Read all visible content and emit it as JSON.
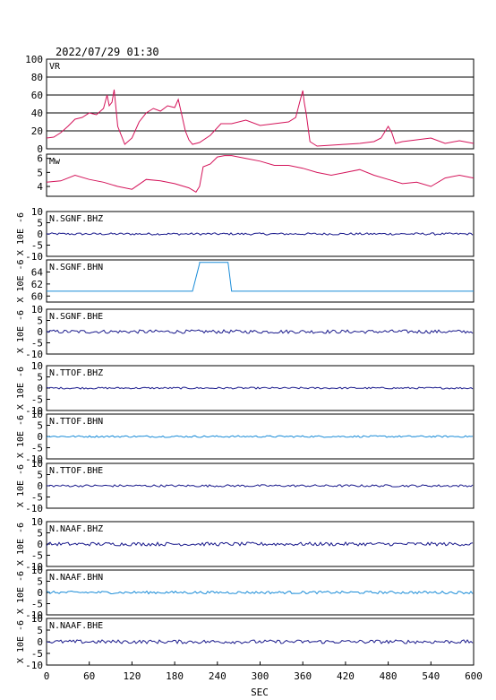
{
  "header": {
    "timestamp": "2022/07/29  01:30"
  },
  "xaxis": {
    "label": "SEC",
    "ticks": [
      "0",
      "60",
      "120",
      "180",
      "240",
      "300",
      "360",
      "420",
      "480",
      "540",
      "600"
    ],
    "range": [
      0,
      600
    ]
  },
  "colors": {
    "vr": "#d4145a",
    "mw": "#d4145a",
    "dark_blue": "#1a1a8c",
    "light_blue": "#1a8cd8",
    "grid": "#000000"
  },
  "chart_data": [
    {
      "type": "line",
      "label": "VR",
      "ylim": [
        0,
        100
      ],
      "yticks": [
        "100",
        "80",
        "60",
        "40",
        "20",
        "0"
      ],
      "grid": true,
      "x": [
        0,
        10,
        20,
        30,
        40,
        50,
        60,
        70,
        80,
        85,
        88,
        92,
        95,
        100,
        110,
        120,
        130,
        140,
        150,
        160,
        170,
        180,
        185,
        190,
        195,
        200,
        205,
        215,
        230,
        245,
        260,
        280,
        300,
        320,
        340,
        350,
        355,
        360,
        362,
        365,
        370,
        380,
        400,
        420,
        440,
        460,
        470,
        480,
        485,
        490,
        500,
        520,
        540,
        560,
        580,
        600
      ],
      "values": [
        12,
        13,
        18,
        25,
        33,
        35,
        40,
        38,
        45,
        60,
        48,
        52,
        66,
        25,
        5,
        12,
        30,
        40,
        45,
        42,
        48,
        46,
        55,
        38,
        20,
        10,
        5,
        7,
        15,
        28,
        28,
        32,
        26,
        28,
        30,
        35,
        50,
        65,
        52,
        38,
        8,
        3,
        4,
        5,
        6,
        8,
        12,
        25,
        18,
        6,
        8,
        10,
        12,
        6,
        9,
        6
      ]
    },
    {
      "type": "line",
      "label": "Mw",
      "ylim": [
        3.3,
        6.3
      ],
      "yticks": [
        "6",
        "5",
        "4"
      ],
      "x": [
        0,
        20,
        40,
        60,
        80,
        100,
        120,
        140,
        160,
        180,
        200,
        210,
        215,
        220,
        230,
        240,
        250,
        260,
        280,
        300,
        320,
        340,
        360,
        380,
        400,
        420,
        440,
        460,
        480,
        500,
        520,
        540,
        560,
        580,
        600
      ],
      "values": [
        4.3,
        4.4,
        4.8,
        4.5,
        4.3,
        4.0,
        3.8,
        4.5,
        4.4,
        4.2,
        3.9,
        3.6,
        4.0,
        5.4,
        5.6,
        6.1,
        6.2,
        6.2,
        6.0,
        5.8,
        5.5,
        5.5,
        5.3,
        5.0,
        4.8,
        5.0,
        5.2,
        4.8,
        4.5,
        4.2,
        4.3,
        4.0,
        4.6,
        4.8,
        4.6
      ]
    },
    {
      "type": "line",
      "label": "N.SGNF.BHZ",
      "ylim": [
        -10,
        10
      ],
      "yticks": [
        "10",
        "5",
        "0",
        "-5",
        "-10"
      ],
      "unit": "X 10E -6",
      "color": "dark",
      "baseline": 0,
      "noise": 0.5
    },
    {
      "type": "line",
      "label": "N.SGNF.BHN",
      "ylim": [
        59,
        66
      ],
      "yticks": [
        "64",
        "62",
        "60"
      ],
      "unit": "X 10E -6",
      "color": "light",
      "segments": [
        {
          "x": [
            0,
            205
          ],
          "y": 60.8
        },
        {
          "x": [
            205,
            215
          ],
          "y": 60.8,
          "to": 65.4
        },
        {
          "x": [
            215,
            255
          ],
          "y": 65.6
        },
        {
          "x": [
            255,
            260
          ],
          "y": 65.6,
          "to": 60.8
        },
        {
          "x": [
            260,
            600
          ],
          "y": 60.8
        }
      ]
    },
    {
      "type": "line",
      "label": "N.SGNF.BHE",
      "ylim": [
        -10,
        10
      ],
      "yticks": [
        "10",
        "5",
        "0",
        "-5",
        "-10"
      ],
      "unit": "X 10E -6",
      "color": "dark",
      "baseline": 0,
      "noise": 0.8
    },
    {
      "type": "line",
      "label": "N.TTOF.BHZ",
      "ylim": [
        -10,
        10
      ],
      "yticks": [
        "10",
        "5",
        "0",
        "-5",
        "-10"
      ],
      "unit": "X 10E -6",
      "color": "dark",
      "baseline": 0,
      "noise": 0.4
    },
    {
      "type": "line",
      "label": "N.TTOF.BHN",
      "ylim": [
        -10,
        10
      ],
      "yticks": [
        "10",
        "5",
        "0",
        "-5",
        "-10"
      ],
      "unit": "X 10E -6",
      "color": "light",
      "baseline": 0,
      "noise": 0.4
    },
    {
      "type": "line",
      "label": "N.TTOF.BHE",
      "ylim": [
        -10,
        10
      ],
      "yticks": [
        "10",
        "5",
        "0",
        "-5",
        "-10"
      ],
      "unit": "X 10E -6",
      "color": "dark",
      "baseline": 0,
      "noise": 0.5
    },
    {
      "type": "line",
      "label": "N.NAAF.BHZ",
      "ylim": [
        -10,
        10
      ],
      "yticks": [
        "10",
        "5",
        "0",
        "-5",
        "-10"
      ],
      "unit": "X 10E -6",
      "color": "dark",
      "baseline": 0,
      "noise": 0.8
    },
    {
      "type": "line",
      "label": "N.NAAF.BHN",
      "ylim": [
        -10,
        10
      ],
      "yticks": [
        "10",
        "5",
        "0",
        "-5",
        "-10"
      ],
      "unit": "X 10E -6",
      "color": "light",
      "baseline": 0,
      "noise": 0.6
    },
    {
      "type": "line",
      "label": "N.NAAF.BHE",
      "ylim": [
        -10,
        10
      ],
      "yticks": [
        "10",
        "5",
        "0",
        "-5",
        "-10"
      ],
      "unit": "X 10E -6",
      "color": "dark",
      "baseline": 0,
      "noise": 0.8
    }
  ]
}
